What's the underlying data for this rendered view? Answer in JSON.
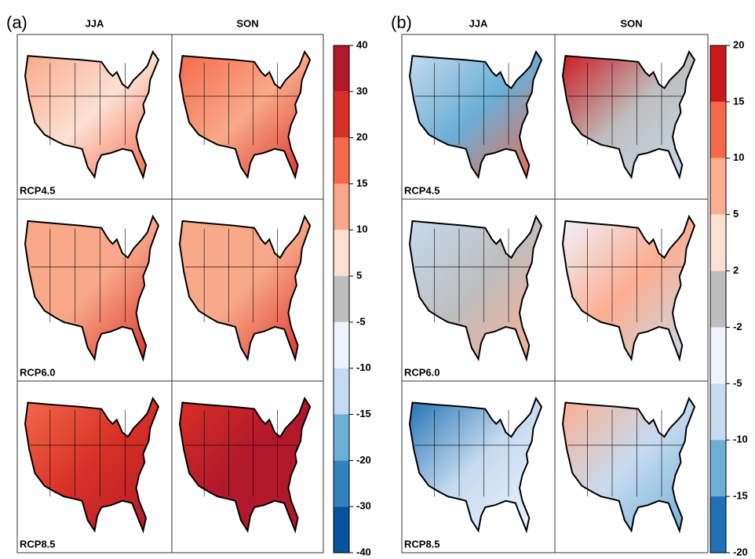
{
  "panels": [
    {
      "label": "(a)",
      "columns": [
        "JJA",
        "SON"
      ],
      "rows": [
        "RCP4.5",
        "RCP6.0",
        "RCP8.5"
      ],
      "colorbar": {
        "ticks": [
          40,
          30,
          20,
          15,
          10,
          5,
          -5,
          -10,
          -15,
          -20,
          -30,
          -40
        ],
        "colors": [
          "#b2182b",
          "#d73027",
          "#f4694a",
          "#f9a98a",
          "#fde0d2",
          "#bebebe",
          "#eff3fd",
          "#c6dbef",
          "#6baed6",
          "#3182bd",
          "#08519c"
        ]
      }
    },
    {
      "label": "(b)",
      "columns": [
        "JJA",
        "SON"
      ],
      "rows": [
        "RCP4.5",
        "RCP6.0",
        "RCP8.5"
      ],
      "colorbar": {
        "ticks": [
          20,
          15,
          10,
          5,
          2,
          -2,
          -5,
          -10,
          -15,
          -20
        ],
        "colors": [
          "#cb181d",
          "#f4694a",
          "#fcae91",
          "#fee0d2",
          "#bebebe",
          "#eff3ff",
          "#c6dbef",
          "#6baed6",
          "#2171b5"
        ]
      }
    }
  ]
}
